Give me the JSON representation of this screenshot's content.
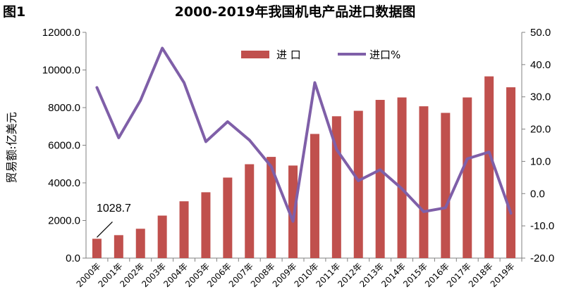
{
  "figure_label": "图1",
  "chart_data": {
    "type": "bar",
    "title": "2000-2019年我国机电产品进口数据图",
    "xlabel": "",
    "ylabel": "贸易额:亿美元",
    "categories": [
      "2000年",
      "2001年",
      "2002年",
      "2003年",
      "2004年",
      "2005年",
      "2006年",
      "2007年",
      "2008年",
      "2009年",
      "2010年",
      "2011年",
      "2012年",
      "2013年",
      "2014年",
      "2015年",
      "2016年",
      "2017年",
      "2018年",
      "2019年"
    ],
    "series": [
      {
        "name": "进 口",
        "type": "bar",
        "axis": "left",
        "color": "#C0504D",
        "values": [
          1028.7,
          1220,
          1560,
          2260,
          3020,
          3500,
          4280,
          4990,
          5380,
          4920,
          6600,
          7540,
          7830,
          8410,
          8540,
          8070,
          7720,
          8540,
          9660,
          9080
        ]
      },
      {
        "name": "进口%",
        "type": "line",
        "axis": "right",
        "color": "#7F5FA8",
        "values": [
          32.9,
          17.3,
          28.9,
          45.1,
          34.4,
          16.1,
          22.3,
          16.6,
          8.4,
          -8.6,
          34.4,
          13.7,
          4.0,
          7.4,
          1.5,
          -5.6,
          -4.4,
          10.8,
          12.9,
          -6.1
        ]
      }
    ],
    "left_axis": {
      "min": 0,
      "max": 12000,
      "step": 2000,
      "ticks": [
        "0.0",
        "2000.0",
        "4000.0",
        "6000.0",
        "8000.0",
        "10000.0",
        "12000.0"
      ]
    },
    "right_axis": {
      "min": -20,
      "max": 50,
      "step": 10,
      "ticks": [
        "-20.0",
        "-10.0",
        "0.0",
        "10.0",
        "20.0",
        "30.0",
        "40.0",
        "50.0"
      ]
    },
    "annotations": [
      {
        "text": "1028.7",
        "category": "2000年"
      }
    ],
    "grid": false,
    "legend": "top-center"
  }
}
